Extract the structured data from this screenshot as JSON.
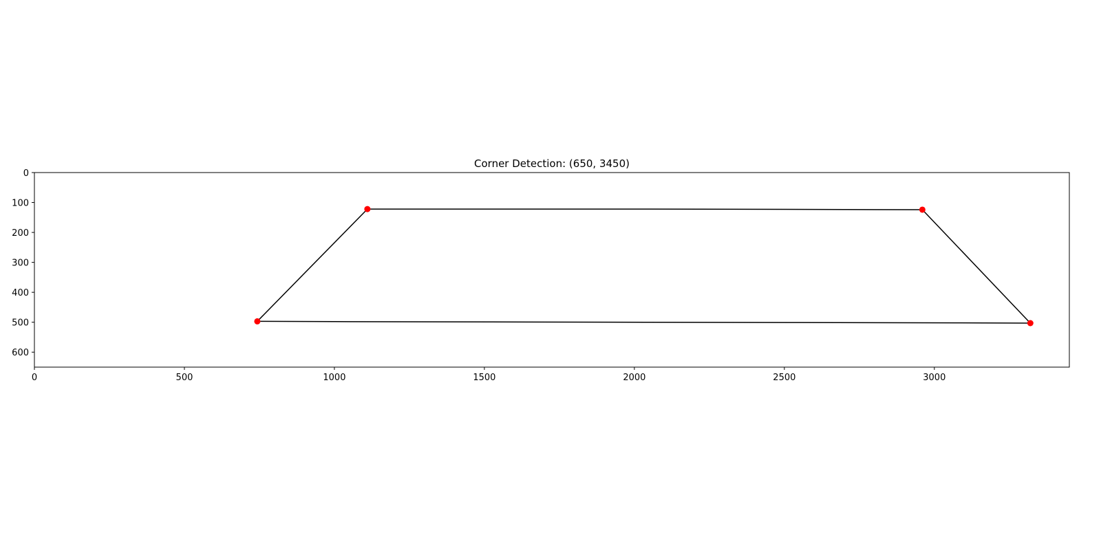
{
  "chart_data": {
    "type": "scatter",
    "title": "Corner Detection: (650, 3450)",
    "xlabel": "",
    "ylabel": "",
    "xlim": [
      0,
      3450
    ],
    "ylim": [
      650,
      0
    ],
    "y_inverted": true,
    "grid": false,
    "x_ticks": [
      0,
      500,
      1000,
      1500,
      2000,
      2500,
      3000
    ],
    "y_ticks": [
      0,
      100,
      200,
      300,
      400,
      500,
      600
    ],
    "outline": {
      "color": "#000000",
      "points": [
        {
          "x": 1110,
          "y": 122
        },
        {
          "x": 2050,
          "y": 122
        },
        {
          "x": 2960,
          "y": 124
        },
        {
          "x": 3320,
          "y": 503
        },
        {
          "x": 3070,
          "y": 502
        },
        {
          "x": 2550,
          "y": 501
        },
        {
          "x": 2040,
          "y": 500
        },
        {
          "x": 1520,
          "y": 499
        },
        {
          "x": 1000,
          "y": 498
        },
        {
          "x": 743,
          "y": 497
        }
      ]
    },
    "corners": {
      "color": "#ff0000",
      "points": [
        {
          "x": 1110,
          "y": 122
        },
        {
          "x": 2960,
          "y": 124
        },
        {
          "x": 743,
          "y": 497
        },
        {
          "x": 3320,
          "y": 503
        }
      ]
    }
  }
}
